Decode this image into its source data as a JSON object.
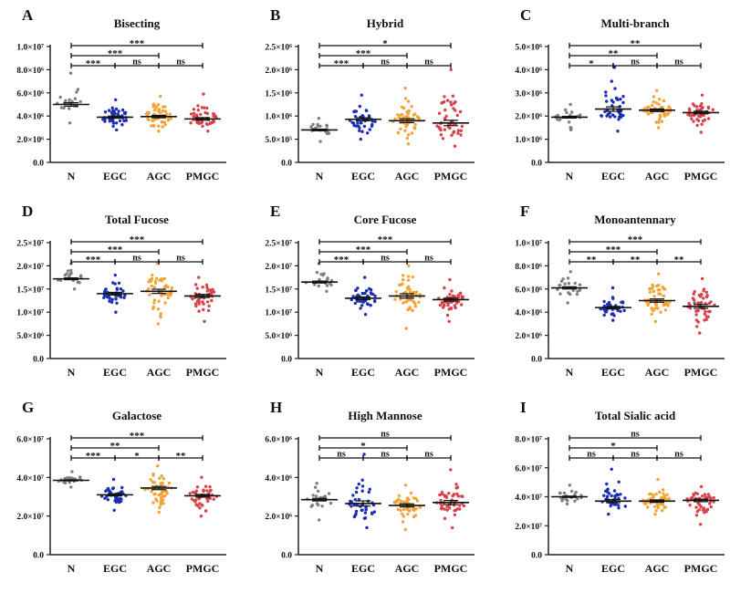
{
  "group_colors": {
    "N": "#7f7f7f",
    "EGC": "#1c2fb5",
    "AGC": "#f2a437",
    "PMGC": "#d9424a"
  },
  "chart_data": [
    {
      "letter": "A",
      "type": "scatter",
      "title": "Bisecting",
      "categories": [
        "N",
        "EGC",
        "AGC",
        "PMGC"
      ],
      "ylim": [
        0,
        10000000
      ],
      "yticks": [
        0,
        2000000,
        4000000,
        6000000,
        8000000,
        10000000
      ],
      "ytick_labels": [
        "0.0",
        "2.0×10⁶",
        "4.0×10⁶",
        "6.0×10⁶",
        "8.0×10⁶",
        "1.0×10⁷"
      ],
      "groups": [
        {
          "name": "N",
          "mean": 5000000,
          "min": 3400000,
          "max": 7700000,
          "n": 20
        },
        {
          "name": "EGC",
          "mean": 3900000,
          "min": 2800000,
          "max": 5400000,
          "n": 40
        },
        {
          "name": "AGC",
          "mean": 3950000,
          "min": 2700000,
          "max": 5700000,
          "n": 50
        },
        {
          "name": "PMGC",
          "mean": 3750000,
          "min": 2700000,
          "max": 5900000,
          "n": 45
        }
      ],
      "significance": [
        {
          "from": "N",
          "to": "PMGC",
          "label": "***"
        },
        {
          "from": "N",
          "to": "AGC",
          "label": "***"
        },
        {
          "from": "N",
          "to": "EGC",
          "label": "***"
        },
        {
          "from": "EGC",
          "to": "AGC",
          "label": "ns"
        },
        {
          "from": "AGC",
          "to": "PMGC",
          "label": "ns"
        }
      ]
    },
    {
      "letter": "B",
      "type": "scatter",
      "title": "Hybrid",
      "categories": [
        "N",
        "EGC",
        "AGC",
        "PMGC"
      ],
      "ylim": [
        0,
        2500000
      ],
      "yticks": [
        0,
        500000,
        1000000,
        1500000,
        2000000,
        2500000
      ],
      "ytick_labels": [
        "0.0",
        "5.0×10⁵",
        "1.0×10⁶",
        "1.5×10⁶",
        "2.0×10⁶",
        "2.5×10⁶"
      ],
      "groups": [
        {
          "name": "N",
          "mean": 700000,
          "min": 450000,
          "max": 950000,
          "n": 20
        },
        {
          "name": "EGC",
          "mean": 930000,
          "min": 500000,
          "max": 1450000,
          "n": 40
        },
        {
          "name": "AGC",
          "mean": 900000,
          "min": 400000,
          "max": 1600000,
          "n": 50
        },
        {
          "name": "PMGC",
          "mean": 850000,
          "min": 350000,
          "max": 2000000,
          "n": 45
        }
      ],
      "significance": [
        {
          "from": "N",
          "to": "PMGC",
          "label": "*"
        },
        {
          "from": "N",
          "to": "AGC",
          "label": "***"
        },
        {
          "from": "N",
          "to": "EGC",
          "label": "***"
        },
        {
          "from": "EGC",
          "to": "AGC",
          "label": "ns"
        },
        {
          "from": "AGC",
          "to": "PMGC",
          "label": "ns"
        }
      ]
    },
    {
      "letter": "C",
      "type": "scatter",
      "title": "Multi-branch",
      "categories": [
        "N",
        "EGC",
        "AGC",
        "PMGC"
      ],
      "ylim": [
        0,
        5000000
      ],
      "yticks": [
        0,
        1000000,
        2000000,
        3000000,
        4000000,
        5000000
      ],
      "ytick_labels": [
        "0.0",
        "1.0×10⁶",
        "2.0×10⁶",
        "3.0×10⁶",
        "4.0×10⁶",
        "5.0×10⁶"
      ],
      "groups": [
        {
          "name": "N",
          "mean": 1950000,
          "min": 1400000,
          "max": 2500000,
          "n": 20
        },
        {
          "name": "EGC",
          "mean": 2300000,
          "min": 1350000,
          "max": 4100000,
          "n": 40
        },
        {
          "name": "AGC",
          "mean": 2250000,
          "min": 1500000,
          "max": 3100000,
          "n": 50
        },
        {
          "name": "PMGC",
          "mean": 2150000,
          "min": 1300000,
          "max": 2900000,
          "n": 45
        }
      ],
      "significance": [
        {
          "from": "N",
          "to": "PMGC",
          "label": "**"
        },
        {
          "from": "N",
          "to": "AGC",
          "label": "**"
        },
        {
          "from": "N",
          "to": "EGC",
          "label": "*"
        },
        {
          "from": "EGC",
          "to": "AGC",
          "label": "ns"
        },
        {
          "from": "AGC",
          "to": "PMGC",
          "label": "ns"
        }
      ]
    },
    {
      "letter": "D",
      "type": "scatter",
      "title": "Total Fucose",
      "categories": [
        "N",
        "EGC",
        "AGC",
        "PMGC"
      ],
      "ylim": [
        0,
        25000000
      ],
      "yticks": [
        0,
        5000000,
        10000000,
        15000000,
        20000000,
        25000000
      ],
      "ytick_labels": [
        "0.0",
        "5.0×10⁶",
        "1.0×10⁷",
        "1.5×10⁷",
        "2.0×10⁷",
        "2.5×10⁷"
      ],
      "groups": [
        {
          "name": "N",
          "mean": 17200000,
          "min": 15000000,
          "max": 20500000,
          "n": 20
        },
        {
          "name": "EGC",
          "mean": 14000000,
          "min": 10000000,
          "max": 18000000,
          "n": 40
        },
        {
          "name": "AGC",
          "mean": 14500000,
          "min": 7500000,
          "max": 20500000,
          "n": 50
        },
        {
          "name": "PMGC",
          "mean": 13500000,
          "min": 8000000,
          "max": 17500000,
          "n": 45
        }
      ],
      "significance": [
        {
          "from": "N",
          "to": "PMGC",
          "label": "***"
        },
        {
          "from": "N",
          "to": "AGC",
          "label": "***"
        },
        {
          "from": "N",
          "to": "EGC",
          "label": "***"
        },
        {
          "from": "EGC",
          "to": "AGC",
          "label": "ns"
        },
        {
          "from": "AGC",
          "to": "PMGC",
          "label": "ns"
        }
      ]
    },
    {
      "letter": "E",
      "type": "scatter",
      "title": "Core Fucose",
      "categories": [
        "N",
        "EGC",
        "AGC",
        "PMGC"
      ],
      "ylim": [
        0,
        25000000
      ],
      "yticks": [
        0,
        5000000,
        10000000,
        15000000,
        20000000,
        25000000
      ],
      "ytick_labels": [
        "0.0",
        "5.0×10⁶",
        "1.0×10⁷",
        "1.5×10⁷",
        "2.0×10⁷",
        "2.5×10⁷"
      ],
      "groups": [
        {
          "name": "N",
          "mean": 16500000,
          "min": 14500000,
          "max": 20500000,
          "n": 20
        },
        {
          "name": "EGC",
          "mean": 13000000,
          "min": 9500000,
          "max": 17500000,
          "n": 40
        },
        {
          "name": "AGC",
          "mean": 13500000,
          "min": 6500000,
          "max": 20000000,
          "n": 50
        },
        {
          "name": "PMGC",
          "mean": 12700000,
          "min": 8000000,
          "max": 17000000,
          "n": 45
        }
      ],
      "significance": [
        {
          "from": "N",
          "to": "PMGC",
          "label": "***"
        },
        {
          "from": "N",
          "to": "AGC",
          "label": "***"
        },
        {
          "from": "N",
          "to": "EGC",
          "label": "***"
        },
        {
          "from": "EGC",
          "to": "AGC",
          "label": "ns"
        },
        {
          "from": "AGC",
          "to": "PMGC",
          "label": "ns"
        }
      ]
    },
    {
      "letter": "F",
      "type": "scatter",
      "title": "Monoantennary",
      "categories": [
        "N",
        "EGC",
        "AGC",
        "PMGC"
      ],
      "ylim": [
        0,
        10000000
      ],
      "yticks": [
        0,
        2000000,
        4000000,
        6000000,
        8000000,
        10000000
      ],
      "ytick_labels": [
        "0.0",
        "2.0×10⁶",
        "4.0×10⁶",
        "6.0×10⁶",
        "8.0×10⁶",
        "1.0×10⁷"
      ],
      "groups": [
        {
          "name": "N",
          "mean": 6100000,
          "min": 4800000,
          "max": 7500000,
          "n": 20
        },
        {
          "name": "EGC",
          "mean": 4400000,
          "min": 3300000,
          "max": 6100000,
          "n": 40
        },
        {
          "name": "AGC",
          "mean": 5000000,
          "min": 3200000,
          "max": 7300000,
          "n": 50
        },
        {
          "name": "PMGC",
          "mean": 4500000,
          "min": 2200000,
          "max": 6900000,
          "n": 45
        }
      ],
      "significance": [
        {
          "from": "N",
          "to": "PMGC",
          "label": "***"
        },
        {
          "from": "N",
          "to": "AGC",
          "label": "***"
        },
        {
          "from": "N",
          "to": "EGC",
          "label": "**"
        },
        {
          "from": "EGC",
          "to": "AGC",
          "label": "**"
        },
        {
          "from": "AGC",
          "to": "PMGC",
          "label": "**"
        }
      ]
    },
    {
      "letter": "G",
      "type": "scatter",
      "title": "Galactose",
      "categories": [
        "N",
        "EGC",
        "AGC",
        "PMGC"
      ],
      "ylim": [
        0,
        60000000
      ],
      "yticks": [
        0,
        20000000,
        40000000,
        60000000
      ],
      "ytick_labels": [
        "0.0",
        "2.0×10⁷",
        "4.0×10⁷",
        "6.0×10⁷"
      ],
      "groups": [
        {
          "name": "N",
          "mean": 38500000,
          "min": 35000000,
          "max": 43000000,
          "n": 20
        },
        {
          "name": "EGC",
          "mean": 31000000,
          "min": 23000000,
          "max": 39000000,
          "n": 40
        },
        {
          "name": "AGC",
          "mean": 34500000,
          "min": 22000000,
          "max": 46000000,
          "n": 50
        },
        {
          "name": "PMGC",
          "mean": 30500000,
          "min": 20000000,
          "max": 40000000,
          "n": 45
        }
      ],
      "significance": [
        {
          "from": "N",
          "to": "PMGC",
          "label": "***"
        },
        {
          "from": "N",
          "to": "AGC",
          "label": "**"
        },
        {
          "from": "N",
          "to": "EGC",
          "label": "***"
        },
        {
          "from": "EGC",
          "to": "AGC",
          "label": "*"
        },
        {
          "from": "AGC",
          "to": "PMGC",
          "label": "**"
        }
      ]
    },
    {
      "letter": "H",
      "type": "scatter",
      "title": "High Mannose",
      "categories": [
        "N",
        "EGC",
        "AGC",
        "PMGC"
      ],
      "ylim": [
        0,
        6000000
      ],
      "yticks": [
        0,
        2000000,
        4000000,
        6000000
      ],
      "ytick_labels": [
        "0.0",
        "2.0×10⁶",
        "4.0×10⁶",
        "6.0×10⁶"
      ],
      "groups": [
        {
          "name": "N",
          "mean": 2850000,
          "min": 1800000,
          "max": 3700000,
          "n": 20
        },
        {
          "name": "EGC",
          "mean": 2650000,
          "min": 1400000,
          "max": 5200000,
          "n": 40
        },
        {
          "name": "AGC",
          "mean": 2550000,
          "min": 1300000,
          "max": 3600000,
          "n": 50
        },
        {
          "name": "PMGC",
          "mean": 2700000,
          "min": 1400000,
          "max": 4400000,
          "n": 45
        }
      ],
      "significance": [
        {
          "from": "N",
          "to": "PMGC",
          "label": "ns"
        },
        {
          "from": "N",
          "to": "AGC",
          "label": "*"
        },
        {
          "from": "N",
          "to": "EGC",
          "label": "ns"
        },
        {
          "from": "EGC",
          "to": "AGC",
          "label": "ns"
        },
        {
          "from": "AGC",
          "to": "PMGC",
          "label": "ns"
        }
      ]
    },
    {
      "letter": "I",
      "type": "scatter",
      "title": "Total Sialic acid",
      "categories": [
        "N",
        "EGC",
        "AGC",
        "PMGC"
      ],
      "ylim": [
        0,
        80000000
      ],
      "yticks": [
        0,
        20000000,
        40000000,
        60000000,
        80000000
      ],
      "ytick_labels": [
        "0.0",
        "2.0×10⁷",
        "4.0×10⁷",
        "6.0×10⁷",
        "8.0×10⁷"
      ],
      "groups": [
        {
          "name": "N",
          "mean": 40000000,
          "min": 35000000,
          "max": 48000000,
          "n": 20
        },
        {
          "name": "EGC",
          "mean": 37000000,
          "min": 28000000,
          "max": 59000000,
          "n": 40
        },
        {
          "name": "AGC",
          "mean": 37000000,
          "min": 28000000,
          "max": 52000000,
          "n": 50
        },
        {
          "name": "PMGC",
          "mean": 37500000,
          "min": 21000000,
          "max": 47000000,
          "n": 45
        }
      ],
      "significance": [
        {
          "from": "N",
          "to": "PMGC",
          "label": "ns"
        },
        {
          "from": "N",
          "to": "AGC",
          "label": "*"
        },
        {
          "from": "N",
          "to": "EGC",
          "label": "ns"
        },
        {
          "from": "EGC",
          "to": "AGC",
          "label": "ns"
        },
        {
          "from": "AGC",
          "to": "PMGC",
          "label": "ns"
        }
      ]
    }
  ]
}
